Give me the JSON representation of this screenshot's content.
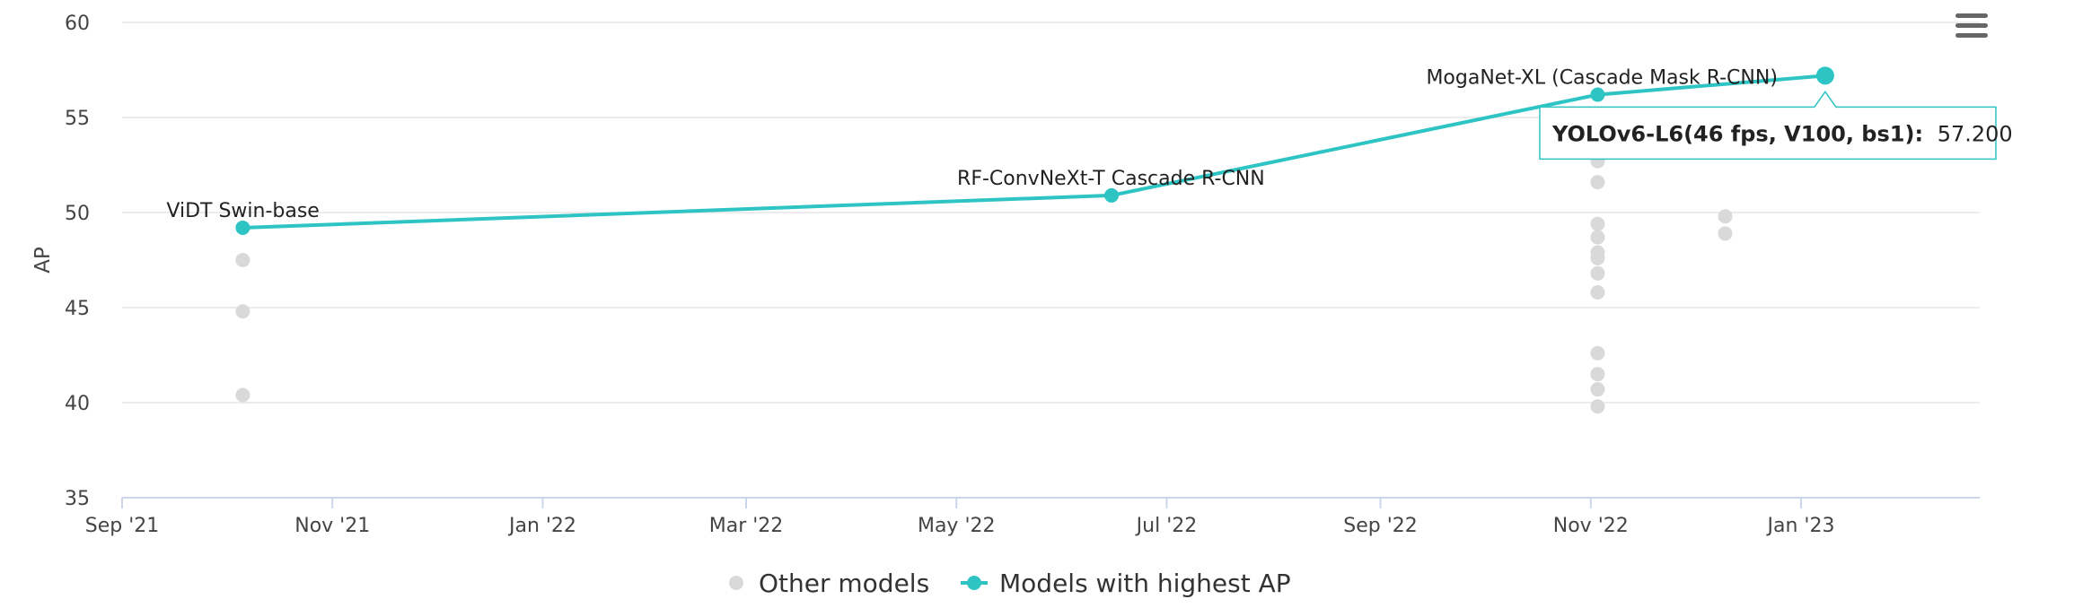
{
  "chart_data": {
    "type": "scatter",
    "title": "",
    "xlabel": "",
    "ylabel": "AP",
    "ylim": [
      35,
      60
    ],
    "xlim": [
      "2021-09-01",
      "2023-02-28"
    ],
    "x_ticks": [
      {
        "date": "2021-09-01",
        "label": "Sep '21"
      },
      {
        "date": "2021-11-01",
        "label": "Nov '21"
      },
      {
        "date": "2022-01-01",
        "label": "Jan '22"
      },
      {
        "date": "2022-03-01",
        "label": "Mar '22"
      },
      {
        "date": "2022-05-01",
        "label": "May '22"
      },
      {
        "date": "2022-07-01",
        "label": "Jul '22"
      },
      {
        "date": "2022-09-01",
        "label": "Sep '22"
      },
      {
        "date": "2022-11-01",
        "label": "Nov '22"
      },
      {
        "date": "2023-01-01",
        "label": "Jan '23"
      }
    ],
    "y_ticks": [
      35,
      40,
      45,
      50,
      55,
      60
    ],
    "grid": true,
    "legend_position": "bottom-center",
    "series": [
      {
        "name": "Other models",
        "color": "#d9d9d9",
        "style": "markers",
        "points": [
          {
            "date": "2021-10-06",
            "y": 47.5
          },
          {
            "date": "2021-10-06",
            "y": 44.8
          },
          {
            "date": "2021-10-06",
            "y": 40.4
          },
          {
            "date": "2022-11-03",
            "y": 52.7
          },
          {
            "date": "2022-11-03",
            "y": 51.6
          },
          {
            "date": "2022-11-03",
            "y": 49.4
          },
          {
            "date": "2022-11-03",
            "y": 48.7
          },
          {
            "date": "2022-11-03",
            "y": 47.9
          },
          {
            "date": "2022-11-03",
            "y": 47.6
          },
          {
            "date": "2022-11-03",
            "y": 46.8
          },
          {
            "date": "2022-11-03",
            "y": 45.8
          },
          {
            "date": "2022-11-03",
            "y": 42.6
          },
          {
            "date": "2022-11-03",
            "y": 41.5
          },
          {
            "date": "2022-11-03",
            "y": 40.7
          },
          {
            "date": "2022-11-03",
            "y": 39.8
          },
          {
            "date": "2022-12-10",
            "y": 49.8
          },
          {
            "date": "2022-12-10",
            "y": 48.9
          }
        ]
      },
      {
        "name": "Models with highest AP",
        "color": "#2ec4c4",
        "style": "line-markers",
        "points": [
          {
            "date": "2021-10-06",
            "y": 49.2,
            "label": "ViDT Swin-base"
          },
          {
            "date": "2022-06-15",
            "y": 50.9,
            "label": "RF-ConvNeXt-T Cascade R-CNN"
          },
          {
            "date": "2022-11-03",
            "y": 56.2,
            "label": "MogaNet-XL (Cascade Mask R-CNN)"
          },
          {
            "date": "2023-01-08",
            "y": 57.2,
            "label": ""
          }
        ]
      }
    ],
    "tooltip": {
      "name": "YOLOv6-L6(46 fps, V100, bs1):",
      "value": "57.200",
      "point_date": "2023-01-08",
      "point_y": 57.2
    }
  },
  "legend": {
    "items": [
      {
        "name": "Other models",
        "color": "#d9d9d9"
      },
      {
        "name": "Models with highest AP",
        "color": "#2ec4c4"
      }
    ]
  },
  "menu": {
    "icon": "hamburger-menu-icon"
  }
}
